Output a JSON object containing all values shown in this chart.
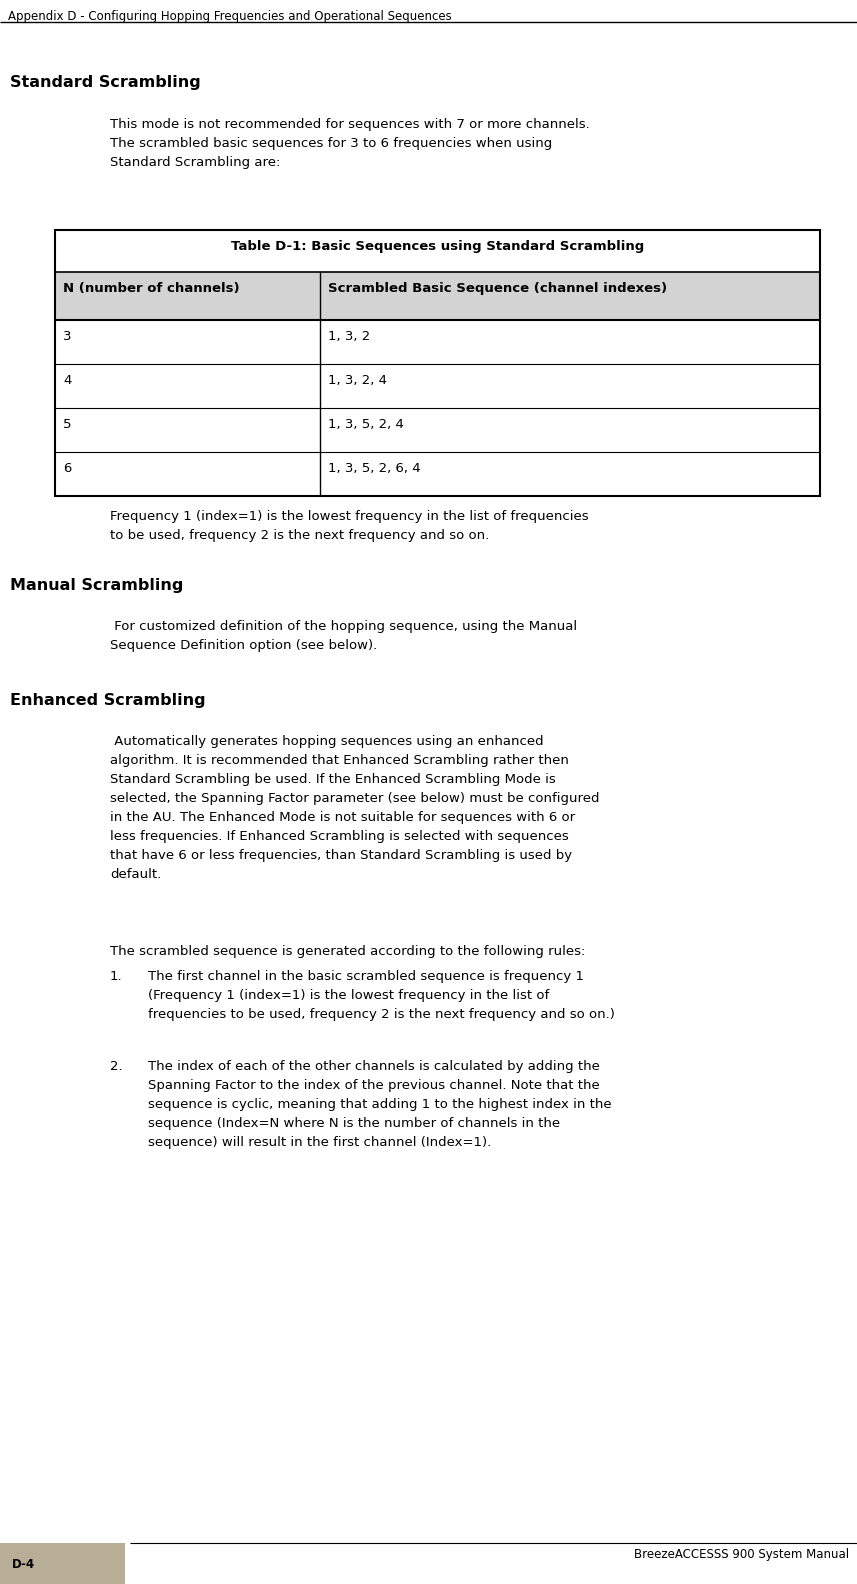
{
  "header_text": "Appendix D - Configuring Hopping Frequencies and Operational Sequences",
  "footer_text": "BreezeACCESSS 900 System Manual",
  "page_number": "D-4",
  "bg_color": "#ffffff",
  "footer_box_color": "#b8ad96",
  "table_title": "Table D-1: Basic Sequences using Standard Scrambling",
  "col1_header": "N (number of channels)",
  "col2_header": "Scrambled Basic Sequence (channel indexes)",
  "table_rows": [
    [
      "3",
      "1, 3, 2"
    ],
    [
      "4",
      "1, 3, 2, 4"
    ],
    [
      "5",
      "1, 3, 5, 2, 4"
    ],
    [
      "6",
      "1, 3, 5, 2, 6, 4"
    ]
  ],
  "heading1": "Standard Scrambling",
  "para1": "This mode is not recommended for sequences with 7 or more channels.\nThe scrambled basic sequences for 3 to 6 frequencies when using\nStandard Scrambling are:",
  "freq_note": "Frequency 1 (index=1) is the lowest frequency in the list of frequencies\nto be used, frequency 2 is the next frequency and so on.",
  "heading2": "Manual Scrambling",
  "para2": " For customized definition of the hopping sequence, using the Manual\nSequence Definition option (see below).",
  "heading3": "Enhanced Scrambling",
  "para3a": " Automatically generates hopping sequences using an enhanced\nalgorithm. It is recommended that Enhanced Scrambling rather then\nStandard Scrambling be used. If the Enhanced Scrambling Mode is\nselected, the Spanning Factor parameter (see below) must be configured\nin the AU. The Enhanced Mode is not suitable for sequences with 6 or\nless frequencies. If Enhanced Scrambling is selected with sequences\nthat have 6 or less frequencies, than Standard Scrambling is used by\ndefault.",
  "para3b": "The scrambled sequence is generated according to the following rules:",
  "item1_num": "1.",
  "item1_text": "The first channel in the basic scrambled sequence is frequency 1\n(Frequency 1 (index=1) is the lowest frequency in the list of\nfrequencies to be used, frequency 2 is the next frequency and so on.)",
  "item2_num": "2.",
  "item2_text": "The index of each of the other channels is calculated by adding the\nSpanning Factor to the index of the previous channel. Note that the\nsequence is cyclic, meaning that adding 1 to the highest index in the\nsequence (Index=N where N is the number of channels in the\nsequence) will result in the first channel (Index=1)."
}
